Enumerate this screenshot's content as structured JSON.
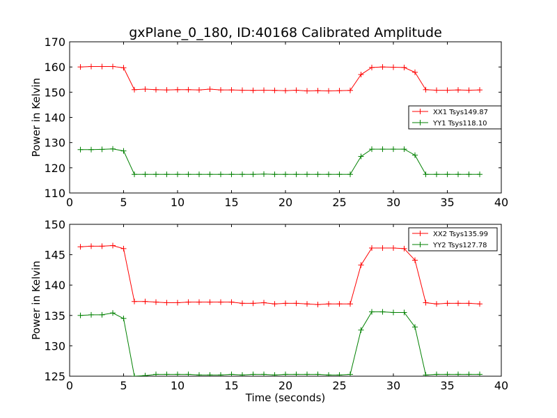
{
  "figure": {
    "title": "gxPlane_0_180, ID:40168 Calibrated Amplitude",
    "xlabel": "Time (seconds)"
  },
  "chart_data": [
    {
      "type": "line",
      "title": "gxPlane_0_180, ID:40168 Calibrated Amplitude",
      "xlabel": "",
      "ylabel": "Power in Kelvin",
      "xlim": [
        0,
        40
      ],
      "ylim": [
        110,
        170
      ],
      "xticks": [
        0,
        5,
        10,
        15,
        20,
        25,
        30,
        35,
        40
      ],
      "yticks": [
        110,
        120,
        130,
        140,
        150,
        160,
        170
      ],
      "grid": false,
      "legend_position": "center-right",
      "marker": "+",
      "x": [
        1,
        2,
        3,
        4,
        5,
        6,
        7,
        8,
        9,
        10,
        11,
        12,
        13,
        14,
        15,
        16,
        17,
        18,
        19,
        20,
        21,
        22,
        23,
        24,
        25,
        26,
        27,
        28,
        29,
        30,
        31,
        32,
        33,
        34,
        35,
        36,
        37,
        38
      ],
      "series": [
        {
          "name": "XX1 Tsys149.87",
          "color": "#ff0000",
          "values": [
            160.0,
            160.2,
            160.2,
            160.2,
            159.7,
            151.0,
            151.2,
            151.0,
            150.9,
            151.0,
            151.0,
            150.9,
            151.2,
            150.9,
            150.9,
            150.8,
            150.7,
            150.8,
            150.7,
            150.6,
            150.8,
            150.5,
            150.6,
            150.5,
            150.6,
            150.7,
            157.0,
            159.8,
            160.0,
            159.9,
            159.8,
            157.9,
            151.0,
            150.8,
            150.8,
            150.9,
            150.8,
            150.9
          ]
        },
        {
          "name": "YY1 Tsys118.10",
          "color": "#008000",
          "values": [
            127.2,
            127.2,
            127.3,
            127.5,
            126.7,
            117.4,
            117.4,
            117.4,
            117.4,
            117.4,
            117.4,
            117.4,
            117.4,
            117.4,
            117.4,
            117.4,
            117.4,
            117.5,
            117.4,
            117.4,
            117.4,
            117.4,
            117.4,
            117.4,
            117.4,
            117.4,
            124.5,
            127.4,
            127.4,
            127.4,
            127.4,
            125.0,
            117.4,
            117.4,
            117.4,
            117.4,
            117.4,
            117.4
          ]
        }
      ]
    },
    {
      "type": "line",
      "xlabel": "Time (seconds)",
      "ylabel": "Power in Kelvin",
      "xlim": [
        0,
        40
      ],
      "ylim": [
        125,
        150
      ],
      "xticks": [
        0,
        5,
        10,
        15,
        20,
        25,
        30,
        35,
        40
      ],
      "yticks": [
        125,
        130,
        135,
        140,
        145,
        150
      ],
      "grid": false,
      "legend_position": "top-right",
      "marker": "+",
      "x": [
        1,
        2,
        3,
        4,
        5,
        6,
        7,
        8,
        9,
        10,
        11,
        12,
        13,
        14,
        15,
        16,
        17,
        18,
        19,
        20,
        21,
        22,
        23,
        24,
        25,
        26,
        27,
        28,
        29,
        30,
        31,
        32,
        33,
        34,
        35,
        36,
        37,
        38
      ],
      "series": [
        {
          "name": "XX2 Tsys135.99",
          "color": "#ff0000",
          "values": [
            146.3,
            146.4,
            146.4,
            146.5,
            146.0,
            137.3,
            137.3,
            137.2,
            137.1,
            137.1,
            137.2,
            137.2,
            137.2,
            137.2,
            137.2,
            137.0,
            137.0,
            137.1,
            136.9,
            137.0,
            137.0,
            136.9,
            136.8,
            136.9,
            136.9,
            136.9,
            143.3,
            146.1,
            146.1,
            146.1,
            146.0,
            144.1,
            137.1,
            136.9,
            137.0,
            137.0,
            137.0,
            136.9
          ]
        },
        {
          "name": "YY2 Tsys127.78",
          "color": "#008000",
          "values": [
            135.0,
            135.1,
            135.1,
            135.4,
            134.5,
            125.0,
            125.1,
            125.3,
            125.3,
            125.3,
            125.3,
            125.2,
            125.2,
            125.2,
            125.3,
            125.2,
            125.3,
            125.3,
            125.2,
            125.3,
            125.3,
            125.3,
            125.3,
            125.2,
            125.2,
            125.3,
            132.6,
            135.6,
            135.6,
            135.5,
            135.5,
            133.1,
            125.2,
            125.3,
            125.3,
            125.3,
            125.3,
            125.3
          ]
        }
      ]
    }
  ]
}
